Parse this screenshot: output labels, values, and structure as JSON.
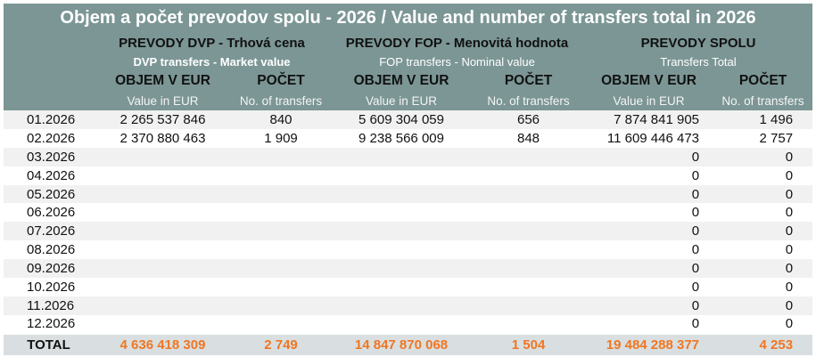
{
  "title": "Objem a počet prevodov spolu - 2026 / Value and number of transfers total in 2026",
  "groups": [
    {
      "title": "PREVODY DVP - Trhová cena",
      "subtitle": "DVP transfers - Market value"
    },
    {
      "title": "PREVODY FOP - Menovitá hodnota",
      "subtitle": "FOP transfers - Nominal value"
    },
    {
      "title": "PREVODY SPOLU",
      "subtitle": "Transfers Total"
    }
  ],
  "col_value": "OBJEM V EUR",
  "col_value_en": "Value in EUR",
  "col_count": "POČET",
  "col_count_en": "No. of transfers",
  "rows": [
    [
      "01.2026",
      "2 265 537 846",
      "840",
      "5 609 304 059",
      "656",
      "7 874 841 905",
      "1 496"
    ],
    [
      "02.2026",
      "2 370 880 463",
      "1 909",
      "9 238 566 009",
      "848",
      "11 609 446 473",
      "2 757"
    ],
    [
      "03.2026",
      "",
      "",
      "",
      "",
      "0",
      "0"
    ],
    [
      "04.2026",
      "",
      "",
      "",
      "",
      "0",
      "0"
    ],
    [
      "05.2026",
      "",
      "",
      "",
      "",
      "0",
      "0"
    ],
    [
      "06.2026",
      "",
      "",
      "",
      "",
      "0",
      "0"
    ],
    [
      "07.2026",
      "",
      "",
      "",
      "",
      "0",
      "0"
    ],
    [
      "08.2026",
      "",
      "",
      "",
      "",
      "0",
      "0"
    ],
    [
      "09.2026",
      "",
      "",
      "",
      "",
      "0",
      "0"
    ],
    [
      "10.2026",
      "",
      "",
      "",
      "",
      "0",
      "0"
    ],
    [
      "11.2026",
      "",
      "",
      "",
      "",
      "0",
      "0"
    ],
    [
      "12.2026",
      "",
      "",
      "",
      "",
      "0",
      "0"
    ]
  ],
  "total": [
    "TOTAL",
    "4 636 418 309",
    "2 749",
    "14 847 870 068",
    "1 504",
    "19 484 288 377",
    "4 253"
  ],
  "colors": {
    "header": "#7b9695",
    "total_text": "#f07623",
    "total_bg": "#d9dfe0"
  }
}
